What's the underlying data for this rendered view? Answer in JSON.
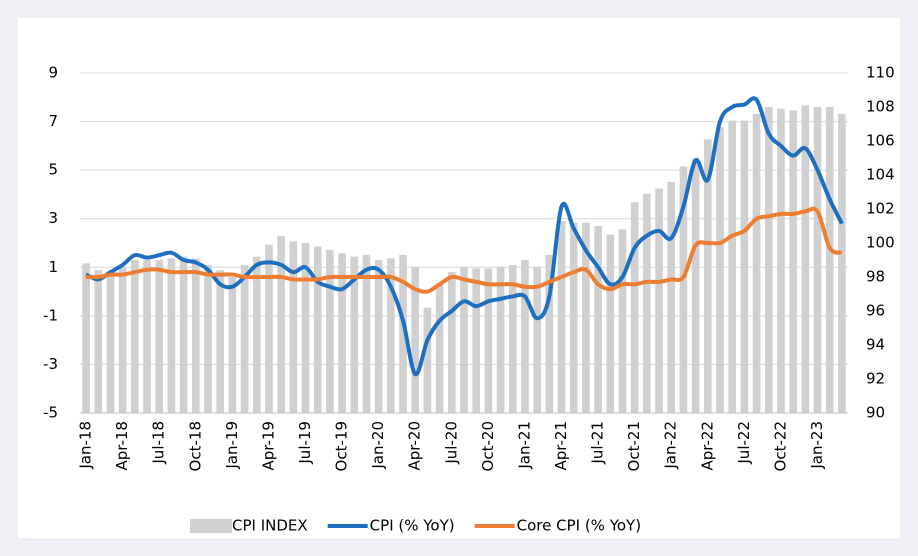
{
  "chart_data": {
    "type": "bar-line",
    "categories": [
      "Jan-18",
      null,
      null,
      "Apr-18",
      null,
      null,
      "Jul-18",
      null,
      null,
      "Oct-18",
      null,
      null,
      "Jan-19",
      null,
      null,
      "Apr-19",
      null,
      null,
      "Jul-19",
      null,
      null,
      "Oct-19",
      null,
      null,
      "Jan-20",
      null,
      null,
      "Apr-20",
      null,
      null,
      "Jul-20",
      null,
      null,
      "Oct-20",
      null,
      null,
      "Jan-21",
      null,
      null,
      "Apr-21",
      null,
      null,
      "Jul-21",
      null,
      null,
      "Oct-21",
      null,
      null,
      "Jan-22",
      null,
      null,
      "Apr-22",
      null,
      null,
      "Jul-22",
      null,
      null,
      "Oct-22",
      null,
      null,
      "Jan-23",
      null,
      null
    ],
    "series": [
      {
        "name": "CPI INDEX",
        "type": "bar",
        "axis": "y2",
        "color": "#d0d0d0",
        "values": [
          98.8,
          98.4,
          98.3,
          98.6,
          99.0,
          99.0,
          99.0,
          99.1,
          99.2,
          99.1,
          98.7,
          98.4,
          98.0,
          98.7,
          99.2,
          99.9,
          100.4,
          100.1,
          100.0,
          99.8,
          99.6,
          99.4,
          99.2,
          99.3,
          99.0,
          99.1,
          99.3,
          98.6,
          96.2,
          97.6,
          98.3,
          98.6,
          98.5,
          98.5,
          98.6,
          98.7,
          99.0,
          98.6,
          99.3,
          101.3,
          101.2,
          101.2,
          101.0,
          100.5,
          100.8,
          102.4,
          102.9,
          103.2,
          103.6,
          104.5,
          105.0,
          106.1,
          106.8,
          107.2,
          107.2,
          107.6,
          108.0,
          107.9,
          107.8,
          108.1,
          108.0,
          108.0,
          107.6
        ]
      },
      {
        "name": "CPI (% YoY)",
        "type": "line",
        "color": "#1f6fc0",
        "values": [
          0.7,
          0.5,
          0.8,
          1.1,
          1.5,
          1.4,
          1.5,
          1.6,
          1.3,
          1.2,
          0.9,
          0.3,
          0.2,
          0.6,
          1.1,
          1.2,
          1.1,
          0.8,
          1.0,
          0.4,
          0.2,
          0.1,
          0.5,
          0.9,
          0.9,
          0.2,
          -1.2,
          -3.4,
          -2.0,
          -1.2,
          -0.8,
          -0.4,
          -0.6,
          -0.4,
          -0.3,
          -0.2,
          -0.2,
          -1.1,
          -0.2,
          3.5,
          2.6,
          1.7,
          1.0,
          0.3,
          0.6,
          1.8,
          2.3,
          2.5,
          2.2,
          3.5,
          5.4,
          4.6,
          7.0,
          7.6,
          7.7,
          7.9,
          6.5,
          6.0,
          5.6,
          5.9,
          5.0,
          3.8,
          2.8
        ]
      },
      {
        "name": "Core CPI (% YoY)",
        "type": "line",
        "color": "#ed7d31",
        "values": [
          0.6,
          0.6,
          0.7,
          0.7,
          0.8,
          0.9,
          0.9,
          0.8,
          0.8,
          0.8,
          0.7,
          0.7,
          0.7,
          0.6,
          0.6,
          0.6,
          0.6,
          0.5,
          0.5,
          0.5,
          0.6,
          0.6,
          0.6,
          0.6,
          0.6,
          0.6,
          0.4,
          0.1,
          0.0,
          0.3,
          0.6,
          0.5,
          0.4,
          0.3,
          0.3,
          0.3,
          0.2,
          0.2,
          0.4,
          0.6,
          0.8,
          0.9,
          0.3,
          0.1,
          0.3,
          0.3,
          0.4,
          0.4,
          0.5,
          0.6,
          1.9,
          2.0,
          2.0,
          2.3,
          2.5,
          3.0,
          3.1,
          3.2,
          3.2,
          3.3,
          3.3,
          1.8,
          1.6
        ]
      }
    ],
    "ylim": [
      -5,
      9
    ],
    "yticks": [
      9,
      7,
      5,
      3,
      1,
      -1,
      -3,
      -5
    ],
    "y2lim": [
      90,
      110
    ],
    "y2ticks": [
      110,
      108,
      106,
      104,
      102,
      100,
      98,
      96,
      94,
      92,
      90
    ],
    "grid": true,
    "legend": "bottom"
  }
}
